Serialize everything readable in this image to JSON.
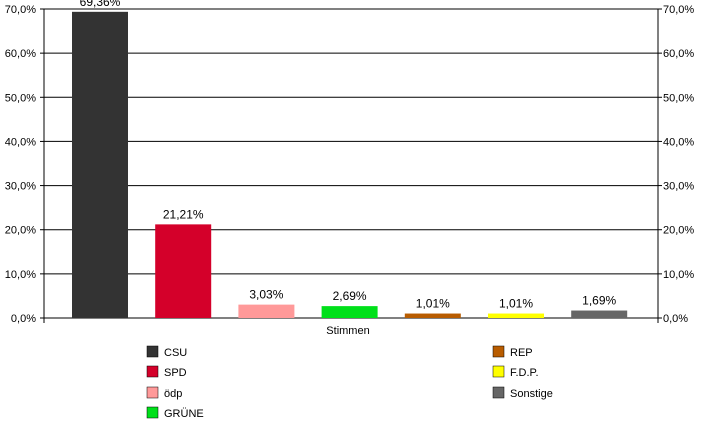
{
  "chart_data": {
    "type": "bar",
    "xlabel": "Stimmen",
    "ylim": [
      0,
      70
    ],
    "y_ticks": [
      "0,0%",
      "10,0%",
      "20,0%",
      "30,0%",
      "40,0%",
      "50,0%",
      "60,0%",
      "70,0%"
    ],
    "y_tick_values": [
      0,
      10,
      20,
      30,
      40,
      50,
      60,
      70
    ],
    "grid": true,
    "secondary_axis": true,
    "legend_position": "bottom",
    "series": [
      {
        "name": "CSU",
        "value": 69.36,
        "label": "69,36%",
        "color": "#333333"
      },
      {
        "name": "SPD",
        "value": 21.21,
        "label": "21,21%",
        "color": "#d4002a"
      },
      {
        "name": "ödp",
        "value": 3.03,
        "label": "3,03%",
        "color": "#ff9999"
      },
      {
        "name": "GRÜNE",
        "value": 2.69,
        "label": "2,69%",
        "color": "#00e01a"
      },
      {
        "name": "REP",
        "value": 1.01,
        "label": "1,01%",
        "color": "#b85c00"
      },
      {
        "name": "F.D.P.",
        "value": 1.01,
        "label": "1,01%",
        "color": "#ffff00"
      },
      {
        "name": "Sonstige",
        "value": 1.69,
        "label": "1,69%",
        "color": "#666666"
      }
    ]
  }
}
